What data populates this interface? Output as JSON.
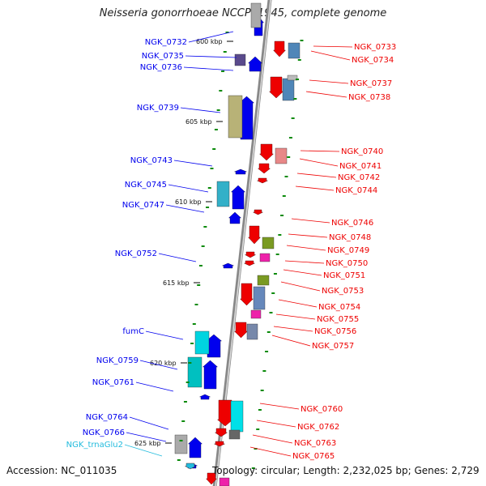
{
  "title": "Neisseria gonorrhoeae NCCP11945, complete genome",
  "accession": "Accession: NC_011035",
  "meta": "Topology: circular; Length: 2,232,025 bp; Genes: 2,729",
  "colors": {
    "forward": "#0000ee",
    "reverse": "#ee0000",
    "trna": "#22bbdd",
    "backbone": "#888888",
    "tick": "#0a8a0a"
  },
  "scale_labels": [
    "600 kbp",
    "605 kbp",
    "610 kbp",
    "615 kbp",
    "620 kbp",
    "625 kbp"
  ],
  "left_genes": [
    "NGK_0732",
    "NGK_0735",
    "NGK_0736",
    "NGK_0739",
    "NGK_0743",
    "NGK_0745",
    "NGK_0747",
    "NGK_0752",
    "fumC",
    "NGK_0759",
    "NGK_0761",
    "NGK_0764",
    "NGK_0766",
    "NGK_trnaGlu2"
  ],
  "right_genes": [
    "NGK_0733",
    "NGK_0734",
    "NGK_0737",
    "NGK_0738",
    "NGK_0740",
    "NGK_0741",
    "NGK_0742",
    "NGK_0744",
    "NGK_0746",
    "NGK_0748",
    "NGK_0749",
    "NGK_0750",
    "NGK_0751",
    "NGK_0753",
    "NGK_0754",
    "NGK_0755",
    "NGK_0756",
    "NGK_0757",
    "NGK_0760",
    "NGK_0762",
    "NGK_0763",
    "NGK_0765"
  ]
}
